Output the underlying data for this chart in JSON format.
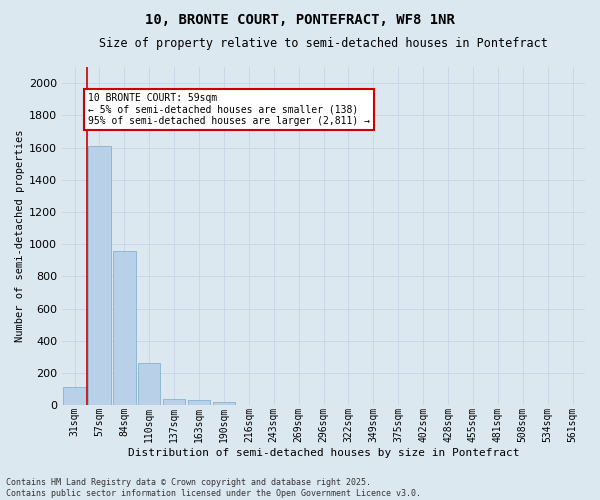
{
  "title_line1": "10, BRONTE COURT, PONTEFRACT, WF8 1NR",
  "title_line2": "Size of property relative to semi-detached houses in Pontefract",
  "xlabel": "Distribution of semi-detached houses by size in Pontefract",
  "ylabel": "Number of semi-detached properties",
  "bar_color": "#b8d0e8",
  "bar_edge_color": "#7aaac8",
  "categories": [
    "31sqm",
    "57sqm",
    "84sqm",
    "110sqm",
    "137sqm",
    "163sqm",
    "190sqm",
    "216sqm",
    "243sqm",
    "269sqm",
    "296sqm",
    "322sqm",
    "349sqm",
    "375sqm",
    "402sqm",
    "428sqm",
    "455sqm",
    "481sqm",
    "508sqm",
    "534sqm",
    "561sqm"
  ],
  "values": [
    115,
    1610,
    955,
    260,
    42,
    35,
    18,
    0,
    0,
    0,
    0,
    0,
    0,
    0,
    0,
    0,
    0,
    0,
    0,
    0,
    0
  ],
  "ylim": [
    0,
    2100
  ],
  "yticks": [
    0,
    200,
    400,
    600,
    800,
    1000,
    1200,
    1400,
    1600,
    1800,
    2000
  ],
  "red_line_x": 0.5,
  "annotation_title": "10 BRONTE COURT: 59sqm",
  "annotation_line1": "← 5% of semi-detached houses are smaller (138)",
  "annotation_line2": "95% of semi-detached houses are larger (2,811) →",
  "annotation_box_color": "#ffffff",
  "annotation_box_edge": "#cc0000",
  "red_line_color": "#cc0000",
  "grid_color": "#c8d8e8",
  "bg_color": "#dce8f0",
  "fig_bg_color": "#dce8f0",
  "footer_line1": "Contains HM Land Registry data © Crown copyright and database right 2025.",
  "footer_line2": "Contains public sector information licensed under the Open Government Licence v3.0.",
  "title1_fontsize": 10,
  "title2_fontsize": 8.5,
  "ylabel_fontsize": 7.5,
  "xlabel_fontsize": 8,
  "tick_fontsize": 7,
  "ytick_fontsize": 8,
  "annot_fontsize": 7,
  "footer_fontsize": 6
}
